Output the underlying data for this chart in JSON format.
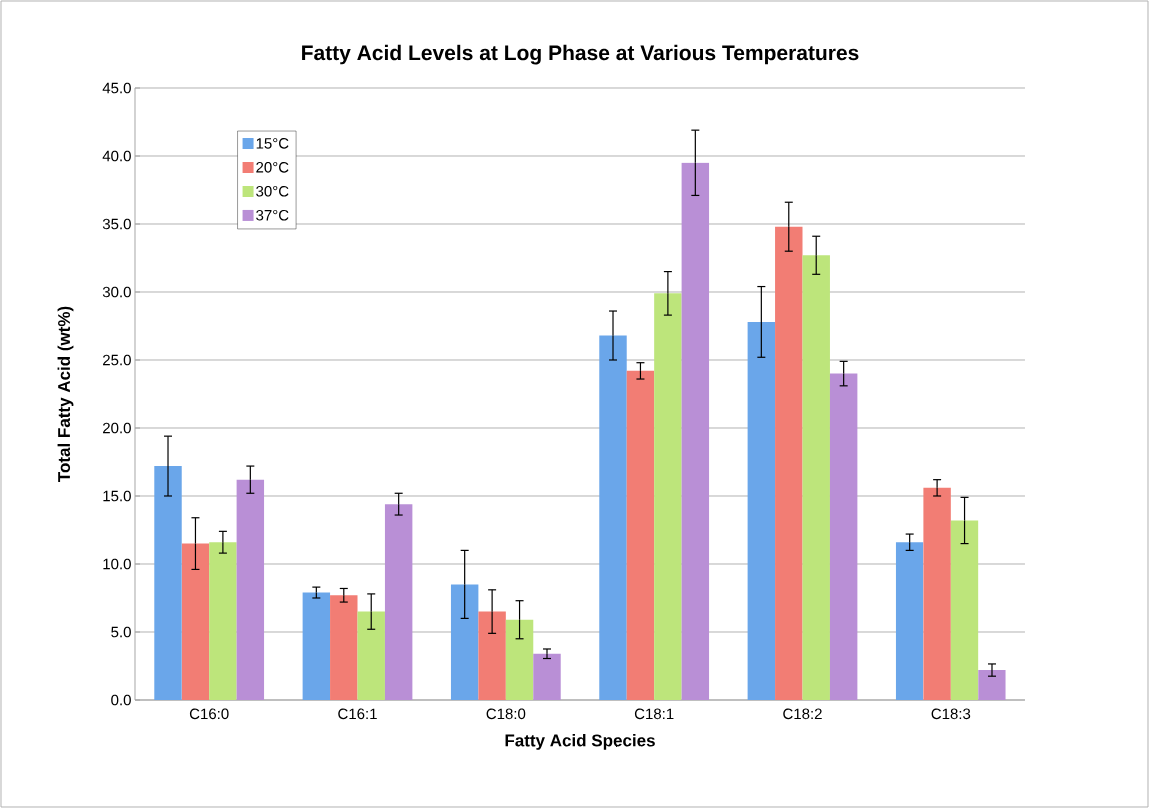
{
  "chart_data": {
    "type": "bar",
    "title": "Fatty Acid Levels at Log Phase at Various Temperatures",
    "xlabel": "Fatty Acid Species",
    "ylabel": "Total Fatty Acid (wt%)",
    "categories": [
      "C16:0",
      "C16:1",
      "C18:0",
      "C18:1",
      "C18:2",
      "C18:3"
    ],
    "series": [
      {
        "name": "15°C",
        "color": "#6aa6ea",
        "values": [
          17.2,
          7.9,
          8.5,
          26.8,
          27.8,
          11.6
        ],
        "errors": [
          2.2,
          0.4,
          2.5,
          1.8,
          2.6,
          0.6
        ]
      },
      {
        "name": "20°C",
        "color": "#f27d74",
        "values": [
          11.5,
          7.7,
          6.5,
          24.2,
          34.8,
          15.6
        ],
        "errors": [
          1.9,
          0.5,
          1.6,
          0.6,
          1.8,
          0.6
        ]
      },
      {
        "name": "30°C",
        "color": "#bde57b",
        "values": [
          11.6,
          6.5,
          5.9,
          29.9,
          32.7,
          13.2
        ],
        "errors": [
          0.8,
          1.3,
          1.4,
          1.6,
          1.4,
          1.7
        ]
      },
      {
        "name": "37°C",
        "color": "#b98fd6",
        "values": [
          16.2,
          14.4,
          3.4,
          39.5,
          24.0,
          2.2
        ],
        "errors": [
          1.0,
          0.8,
          0.35,
          2.4,
          0.9,
          0.45
        ]
      }
    ],
    "ylim": [
      0,
      45
    ],
    "yticks": [
      {
        "value": 0,
        "label": "0.0"
      },
      {
        "value": 5,
        "label": "5.0"
      },
      {
        "value": 10,
        "label": "10.0"
      },
      {
        "value": 15,
        "label": "15.0"
      },
      {
        "value": 20,
        "label": "20.0"
      },
      {
        "value": 25,
        "label": "25.0"
      },
      {
        "value": 30,
        "label": "30.0"
      },
      {
        "value": 35,
        "label": "35.0"
      },
      {
        "value": 40,
        "label": "40.0"
      },
      {
        "value": 45,
        "label": "45.0"
      }
    ],
    "grid": "y",
    "legend": "top left"
  }
}
